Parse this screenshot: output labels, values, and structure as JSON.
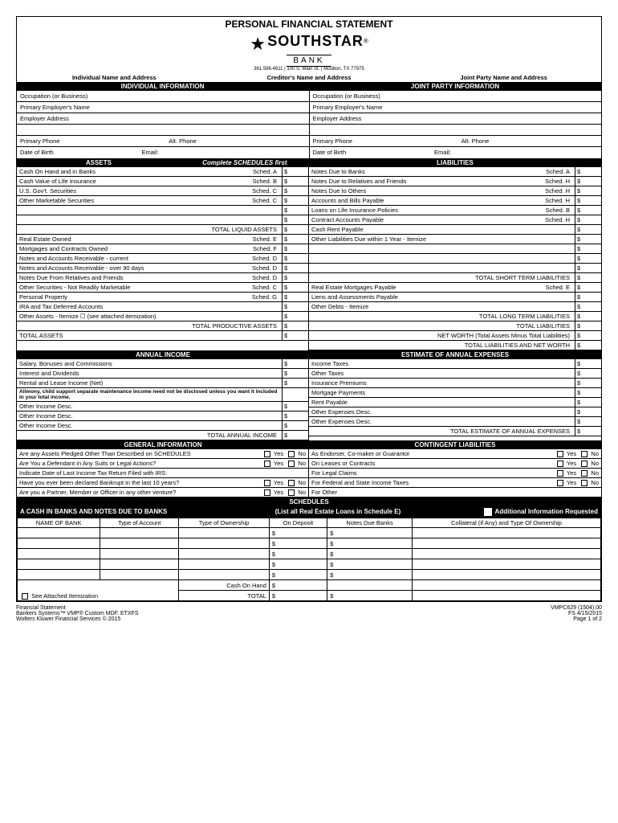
{
  "title": "PERSONAL FINANCIAL STATEMENT",
  "bank_name": "SOUTHSTAR",
  "bank_sub": "BANK",
  "bank_contact": "361.596.4611  |  100 S. Main St.  |  Moulton, TX 77975",
  "headers": {
    "individual": "Individual Name and Address",
    "creditor": "Creditor's Name and Address",
    "joint": "Joint Party Name and Address",
    "indiv_info": "INDIVIDUAL INFORMATION",
    "joint_info": "JOINT PARTY INFORMATION"
  },
  "fields": {
    "occupation": "Occupation (or Business)",
    "employer_name": "Primary Employer's Name",
    "employer_addr": "Employer Address",
    "primary_phone": "Primary Phone",
    "alt_phone": "Alt. Phone",
    "dob": "Date of Birth",
    "email": "Email:"
  },
  "section_headers": {
    "assets": "ASSETS",
    "complete_first": "Complete SCHEDULES first",
    "liabilities": "LIABILITIES",
    "annual_income": "ANNUAL INCOME",
    "est_expenses": "ESTIMATE OF ANNUAL EXPENSES",
    "gen_info": "GENERAL INFORMATION",
    "cont_liab": "CONTINGENT LIABILITIES",
    "schedules": "SCHEDULES"
  },
  "assets": [
    {
      "label": "Cash On Hand and in Banks",
      "sched": "Sched. A"
    },
    {
      "label": "Cash Value of Life Insurance",
      "sched": "Sched. B"
    },
    {
      "label": "U.S. Gov't. Securities",
      "sched": "Sched. C"
    },
    {
      "label": "Other Marketable Securities",
      "sched": "Sched. C"
    },
    {
      "label": "",
      "sched": ""
    },
    {
      "label": "",
      "sched": ""
    },
    {
      "label": "",
      "sched": "TOTAL LIQUID ASSETS"
    },
    {
      "label": "Real Estate Owned",
      "sched": "Sched. E"
    },
    {
      "label": "Mortgages and Contracts Owned",
      "sched": "Sched. F"
    },
    {
      "label": "Notes and Accounts Receivable - current",
      "sched": "Sched. D"
    },
    {
      "label": "Notes and Accounts Receivable - over 90 days",
      "sched": "Sched. D"
    },
    {
      "label": "Notes Due From Relatives and Friends",
      "sched": "Sched. D"
    },
    {
      "label": "Other Securities - Not Readily Marketable",
      "sched": "Sched. C"
    },
    {
      "label": "Personal Property",
      "sched": "Sched. G"
    },
    {
      "label": "IRA and Tax Deferred Accounts",
      "sched": ""
    },
    {
      "label": "Other Assets - Itemize   ☐   (see attached itemization)",
      "sched": ""
    },
    {
      "label": "",
      "sched": "TOTAL PRODUCTIVE ASSETS"
    },
    {
      "label": "TOTAL ASSETS",
      "sched": ""
    }
  ],
  "liabilities": [
    {
      "label": "Notes Due to Banks",
      "sched": "Sched. A"
    },
    {
      "label": "Notes Due to Relatives and Friends",
      "sched": "Sched. H"
    },
    {
      "label": "Notes Due to Others",
      "sched": "Sched. H"
    },
    {
      "label": "Accounts and Bills Payable",
      "sched": "Sched. H"
    },
    {
      "label": "Loans on Life Insurance Policies",
      "sched": "Sched. B"
    },
    {
      "label": "Contract Accounts Payable",
      "sched": "Sched. H"
    },
    {
      "label": "Cash Rent Payable",
      "sched": ""
    },
    {
      "label": "Other Liabilities Due within 1 Year - Itemize",
      "sched": ""
    },
    {
      "label": "",
      "sched": ""
    },
    {
      "label": "",
      "sched": ""
    },
    {
      "label": "",
      "sched": ""
    },
    {
      "label": "",
      "sched": "TOTAL SHORT TERM LIABILITIES"
    },
    {
      "label": "Real Estate Mortgages Payable",
      "sched": "Sched. E"
    },
    {
      "label": "Liens and Assessments Payable",
      "sched": ""
    },
    {
      "label": "Other Debts - Itemize",
      "sched": ""
    },
    {
      "label": "",
      "sched": "TOTAL LONG TERM LIABILITIES"
    },
    {
      "label": "",
      "sched": "TOTAL LIABILITIES"
    },
    {
      "label": "",
      "sched": "NET WORTH (Total Assets Minus Total Liabilities)"
    },
    {
      "label": "",
      "sched": "TOTAL LIABILITIES AND NET WORTH"
    }
  ],
  "income": [
    "Salary, Bonuses and Commissions",
    "Interest and Dividends",
    "Rental and Lease Income (Net)"
  ],
  "income_note": "Alimony, child support separate maintenance income need not be disclosed unless you want it included in your total income.",
  "other_income": "Other Income Desc.",
  "total_income": "TOTAL ANNUAL INCOME",
  "expenses": [
    "Income Taxes",
    "Other Taxes",
    "Insurance Premiums",
    "Mortgage Payments",
    "Rent Payable",
    "Other Expenses Desc.",
    "Other Expenses Desc."
  ],
  "total_expenses": "TOTAL ESTIMATE OF ANNUAL EXPENSES",
  "gen_info": [
    "Are any Assets Pledged Other Than Described on SCHEDULES",
    "Are You a Defendant in Any Suits or Legal Actions?",
    "Indicate Date of Last Income Tax Return Filed with IRS:",
    "Have you ever been declared Bankrupt in the last 10 years?",
    "Are you a Partner, Member or Officer in any other venture?"
  ],
  "cont_liab": [
    "As Endorser, Co-maker or Guarantor",
    "On Leases or Contracts",
    "For Legal Claims",
    "For Federal and State Income Taxes",
    "For Other"
  ],
  "yes": "Yes",
  "no": "No",
  "sched_a_title": "A    CASH IN BANKS AND NOTES DUE TO BANKS",
  "sched_a_sub": "(List all Real Estate Loans in Schedule E)",
  "additional_info": "Additional Information Requested",
  "sched_cols": [
    "NAME OF BANK",
    "Type of Account",
    "Type of Ownership",
    "On Deposit",
    "Notes Due Banks",
    "Collateral (if Any) and Type Of Ownership"
  ],
  "see_attached": "See Attached Itemization",
  "cash_on_hand": "Cash On Hand",
  "total": "TOTAL",
  "footer": {
    "left1": "Financial Statement",
    "left2": "Bankers Systems™ VMP®        Custom    MDF. ETXFS",
    "left3": "Wolters Kluwer Financial Services © 2015",
    "right1": "VMPC629 (1504).00",
    "right2": "FS 4/15/2015",
    "right3": "Page 1 of 2"
  }
}
